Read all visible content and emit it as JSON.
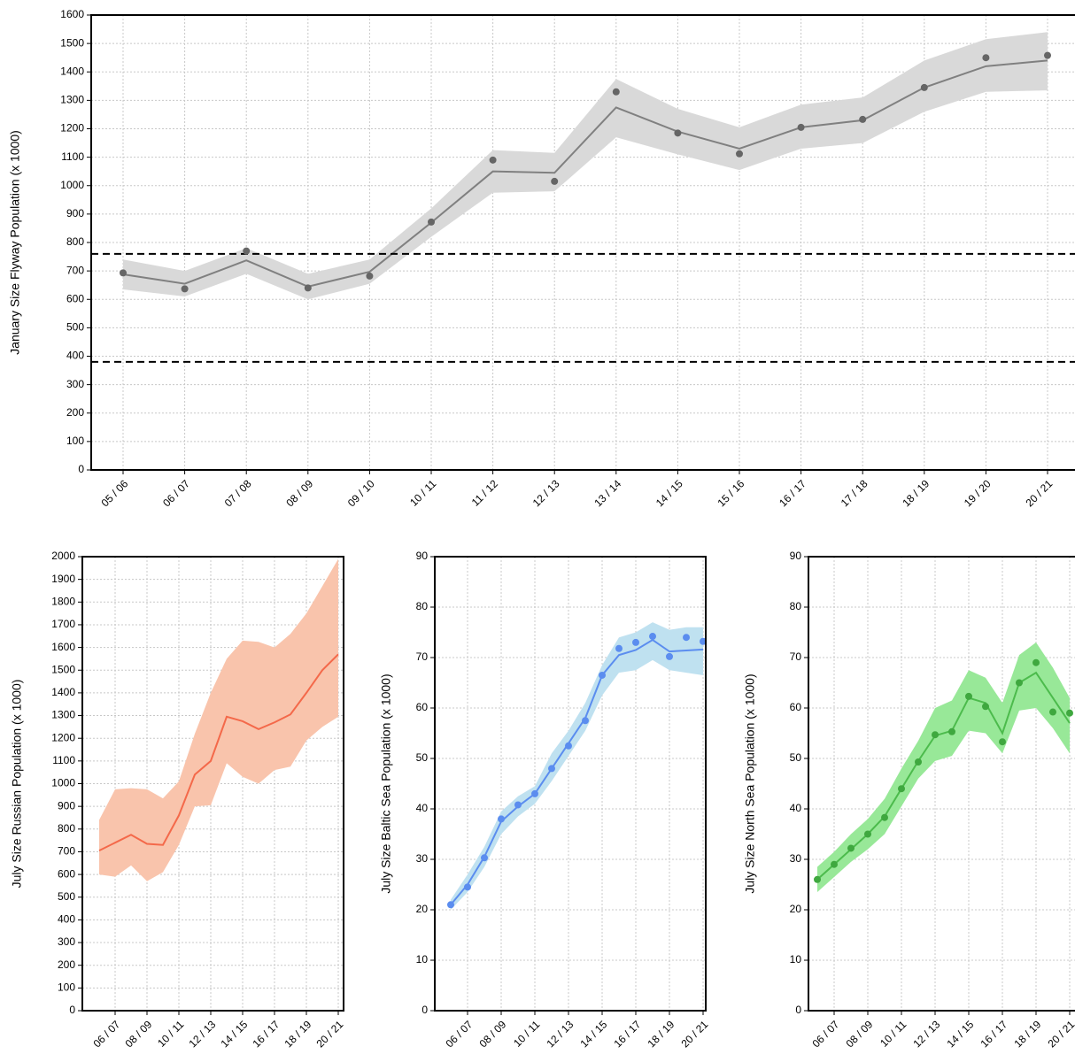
{
  "chart_data": [
    {
      "type": "line-band",
      "y_label": "January Size Flyway Population (x 1000)",
      "categories": [
        "05 / 06",
        "06 / 07",
        "07 / 08",
        "08 / 09",
        "09 / 10",
        "10 / 11",
        "11 / 12",
        "12 / 13",
        "13 / 14",
        "14 / 15",
        "15 / 16",
        "16 / 17",
        "17 / 18",
        "18 / 19",
        "19 / 20",
        "20 / 21"
      ],
      "line_values": [
        688,
        655,
        737,
        645,
        697,
        870,
        1050,
        1045,
        1275,
        1190,
        1130,
        1205,
        1230,
        1345,
        1420,
        1440
      ],
      "band_lower": [
        635,
        610,
        690,
        600,
        655,
        820,
        975,
        980,
        1170,
        1110,
        1055,
        1130,
        1150,
        1260,
        1330,
        1335
      ],
      "band_upper": [
        740,
        700,
        780,
        690,
        740,
        920,
        1125,
        1115,
        1375,
        1270,
        1205,
        1285,
        1310,
        1440,
        1515,
        1540
      ],
      "points": [
        693,
        637,
        770,
        640,
        682,
        872,
        1090,
        1015,
        1330,
        1185,
        1112,
        1205,
        1233,
        1345,
        1450,
        1458
      ],
      "reference_lines": [
        760,
        380
      ],
      "line_color": "#808080",
      "band_color": "#d9d9d9",
      "point_color": "#666666",
      "ylim": [
        0,
        1600
      ],
      "yticks": [
        0,
        100,
        200,
        300,
        400,
        500,
        600,
        700,
        800,
        900,
        1000,
        1100,
        1200,
        1300,
        1400,
        1500,
        1600
      ],
      "grid": true
    },
    {
      "type": "line-band",
      "y_label": "July Size Russian Population (x 1000)",
      "categories": [
        null,
        "06 / 07",
        null,
        "08 / 09",
        null,
        "10 / 11",
        null,
        "12 / 13",
        null,
        "14 / 15",
        null,
        "16 / 17",
        null,
        "18 / 19",
        null,
        "20 / 21"
      ],
      "line_values": [
        705,
        740,
        775,
        735,
        730,
        860,
        1040,
        1100,
        1295,
        1275,
        1240,
        1270,
        1305,
        1400,
        1500,
        1570
      ],
      "band_lower": [
        600,
        590,
        640,
        570,
        610,
        730,
        900,
        905,
        1090,
        1030,
        1000,
        1060,
        1075,
        1190,
        1250,
        1295
      ],
      "band_upper": [
        840,
        975,
        980,
        975,
        935,
        1010,
        1220,
        1400,
        1550,
        1630,
        1625,
        1600,
        1660,
        1750,
        1870,
        1990
      ],
      "line_color": "#f4694a",
      "band_color": "#f9c4ac",
      "ylim": [
        0,
        2000
      ],
      "yticks": [
        0,
        100,
        200,
        300,
        400,
        500,
        600,
        700,
        800,
        900,
        1000,
        1100,
        1200,
        1300,
        1400,
        1500,
        1600,
        1700,
        1800,
        1900,
        2000
      ],
      "grid": true
    },
    {
      "type": "line-band",
      "y_label": "July Size Baltic Sea Population (x 1000)",
      "categories": [
        null,
        "06 / 07",
        null,
        "08 / 09",
        null,
        "10 / 11",
        null,
        "12 / 13",
        null,
        "14 / 15",
        null,
        "16 / 17",
        null,
        "18 / 19",
        null,
        "20 / 21"
      ],
      "line_values": [
        21,
        25,
        30.5,
        37.5,
        40.5,
        43,
        48,
        53,
        58,
        66.5,
        70.5,
        71.5,
        73.5,
        71.2,
        71.4,
        71.6
      ],
      "band_lower": [
        20,
        23.5,
        28.5,
        35,
        38.5,
        41,
        45.5,
        50.5,
        55.5,
        62.5,
        67,
        67.5,
        69.5,
        67.5,
        67,
        66.5
      ],
      "band_upper": [
        22,
        27,
        32.5,
        39.5,
        42.5,
        44.5,
        51,
        55.5,
        61,
        68.5,
        74,
        75,
        77,
        75.5,
        76,
        76
      ],
      "points": [
        21,
        24.5,
        30.3,
        38,
        40.8,
        43,
        48,
        52.5,
        57.5,
        66.5,
        71.8,
        73,
        74.2,
        70.2,
        74,
        73.2
      ],
      "line_color": "#5b8def",
      "band_color": "#bfe1f0",
      "point_color": "#5b8def",
      "ylim": [
        0,
        90
      ],
      "yticks": [
        0,
        10,
        20,
        30,
        40,
        50,
        60,
        70,
        80,
        90
      ],
      "grid": true
    },
    {
      "type": "line-band",
      "y_label": "July Size North Sea Population (x 1000)",
      "categories": [
        null,
        "06 / 07",
        null,
        "08 / 09",
        null,
        "10 / 11",
        null,
        "12 / 13",
        null,
        "14 / 15",
        null,
        "16 / 17",
        null,
        "18 / 19",
        null,
        "20 / 21"
      ],
      "line_values": [
        26,
        29,
        32,
        35,
        38.5,
        44,
        49.5,
        54.5,
        55.5,
        62,
        61,
        55,
        65,
        67,
        62,
        57
      ],
      "band_lower": [
        23.5,
        26.5,
        29.5,
        32,
        35,
        40.5,
        46,
        49.5,
        50.5,
        55.5,
        55,
        51,
        59.5,
        60,
        56,
        51
      ],
      "band_upper": [
        28.5,
        31.5,
        35,
        38,
        42,
        48,
        53.5,
        60,
        61.5,
        67.5,
        66,
        61,
        70.5,
        73,
        68,
        62
      ],
      "points": [
        26,
        29,
        32.2,
        35,
        38.3,
        44,
        49.3,
        54.7,
        55.3,
        62.3,
        60.3,
        53.3,
        65,
        69,
        59.2,
        59
      ],
      "line_color": "#4cbb4c",
      "band_color": "#98e898",
      "point_color": "#3fa83f",
      "ylim": [
        0,
        90
      ],
      "yticks": [
        0,
        10,
        20,
        30,
        40,
        50,
        60,
        70,
        80,
        90
      ],
      "grid": true
    }
  ]
}
